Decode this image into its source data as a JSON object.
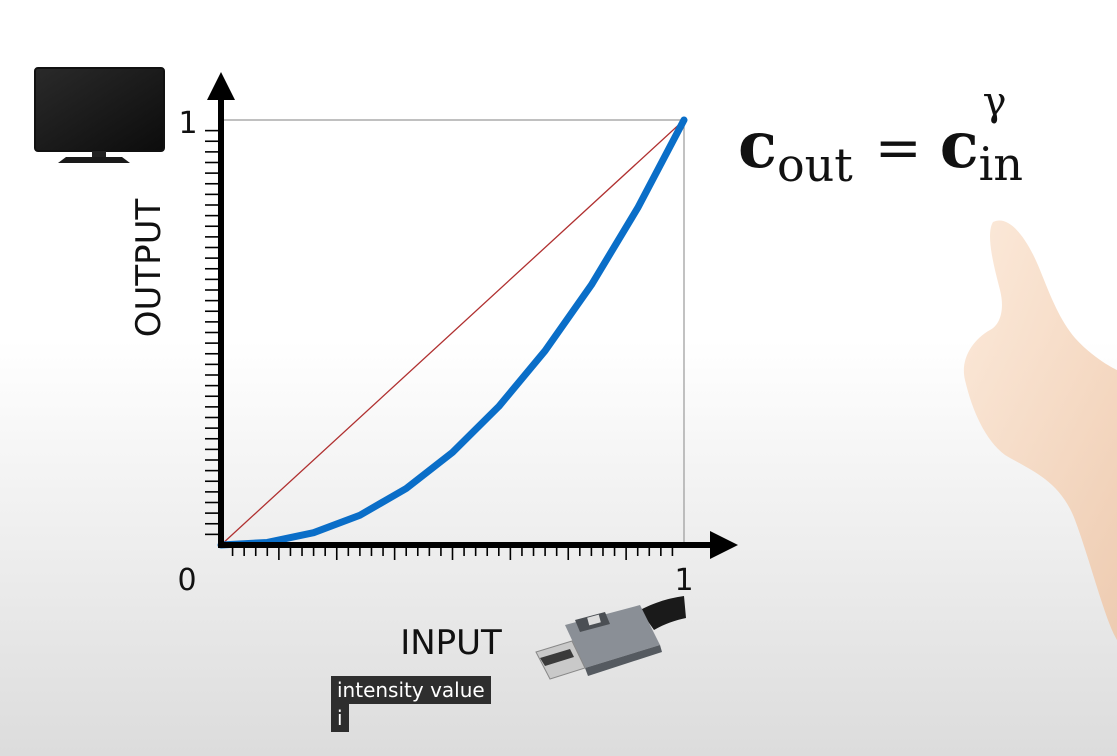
{
  "chart_data": {
    "type": "line",
    "title": "",
    "xlabel": "INPUT",
    "ylabel": "OUTPUT",
    "xlim": [
      0,
      1
    ],
    "ylim": [
      0,
      1
    ],
    "x_tick_labels": [
      "0",
      "1"
    ],
    "y_tick_labels": [
      "1"
    ],
    "grid": false,
    "series": [
      {
        "color": "#b03030",
        "x": [
          0,
          1
        ],
        "y": [
          0,
          1
        ]
      },
      {
        "color": "#0a6ec8",
        "x": [
          0,
          0.1,
          0.2,
          0.3,
          0.4,
          0.5,
          0.6,
          0.7,
          0.8,
          0.9,
          1.0
        ],
        "y": [
          0,
          0.006,
          0.029,
          0.07,
          0.133,
          0.218,
          0.326,
          0.457,
          0.612,
          0.793,
          1.0
        ]
      }
    ]
  },
  "formula": {
    "base": "c",
    "lhs_sub": "out",
    "eq": "=",
    "rhs_sub": "in",
    "sup": "γ"
  },
  "caption": {
    "line1": "intensity value",
    "line2": "i"
  },
  "icons": {
    "monitor": "monitor-icon",
    "connector": "displayport-connector-icon",
    "hand": "pointing-hand-icon"
  }
}
